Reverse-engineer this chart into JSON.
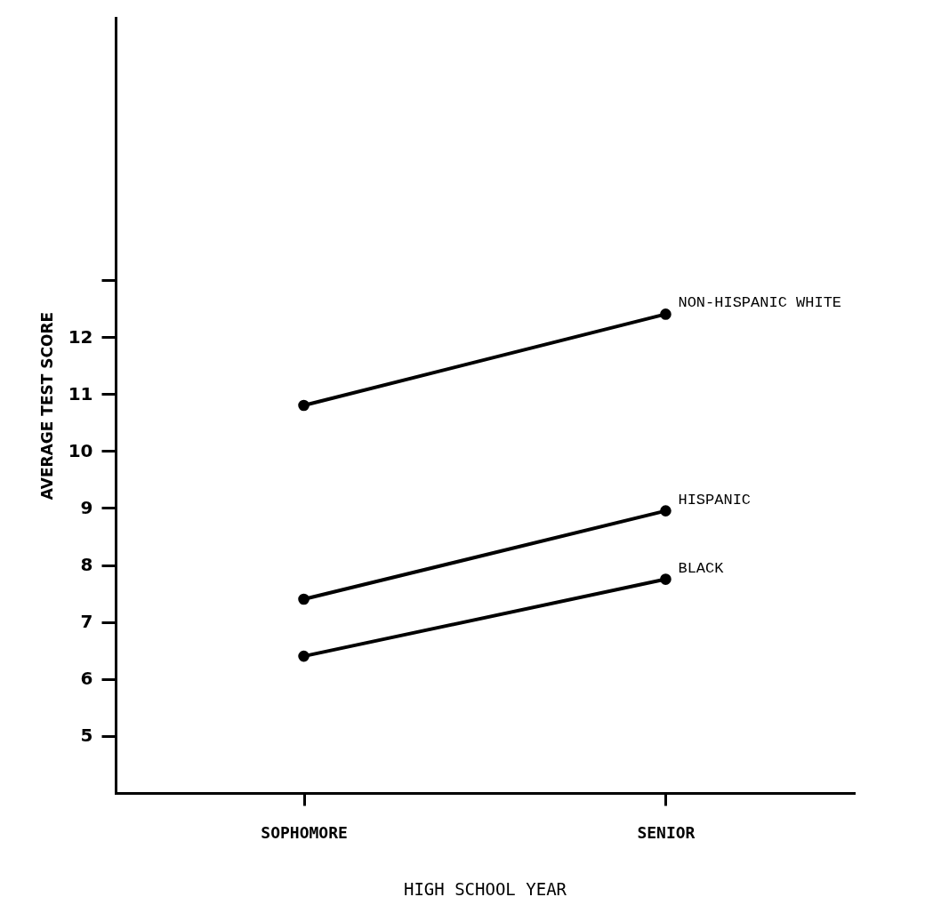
{
  "chart_data": {
    "type": "line",
    "xlabel": "HIGH SCHOOL YEAR",
    "ylabel": "AVERAGE TEST SCORE",
    "categories": [
      "SOPHOMORE",
      "SENIOR"
    ],
    "series": [
      {
        "name": "NON-HISPANIC WHITE",
        "color": "#000000",
        "values": [
          10.8,
          12.4
        ]
      },
      {
        "name": "HISPANIC",
        "color": "#000000",
        "values": [
          7.4,
          8.95
        ]
      },
      {
        "name": "BLACK",
        "color": "#000000",
        "values": [
          6.4,
          7.75
        ]
      }
    ],
    "ylim": [
      4,
      17.6
    ],
    "yticks": [
      5,
      6,
      7,
      8,
      9,
      10,
      11,
      12,
      {
        "value": 13,
        "label": null
      }
    ],
    "grid": false,
    "marker": "circle",
    "line_style": "solid"
  }
}
